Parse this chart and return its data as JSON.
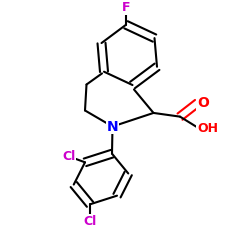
{
  "background_color": "#ffffff",
  "figsize": [
    2.5,
    2.5
  ],
  "dpi": 100,
  "atom_colors": {
    "N": "#0000ff",
    "O": "#ff0000",
    "F": "#cc00cc",
    "Cl": "#cc00cc",
    "C": "#000000"
  },
  "bond_color": "#000000",
  "bond_width": 1.5
}
